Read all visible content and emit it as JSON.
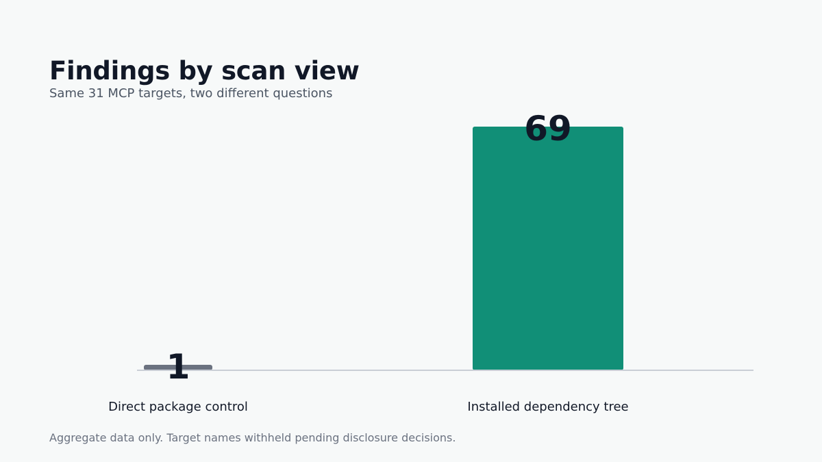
{
  "title": "Findings by scan view",
  "subtitle": "Same 31 MCP targets, two different questions",
  "footnote": "Aggregate data only. Target names withheld pending disclosure decisions.",
  "chart_data": {
    "type": "bar",
    "title": "Findings by scan view",
    "subtitle": "Same 31 MCP targets, two different questions",
    "categories": [
      "Direct package control",
      "Installed dependency tree"
    ],
    "values": [
      1,
      69
    ],
    "data_labels": [
      "1",
      "69"
    ],
    "colors": [
      "#6b7280",
      "#118f77"
    ],
    "xlabel": "",
    "ylabel": "",
    "ylim": [
      0,
      69
    ],
    "grid": false,
    "legend": "none"
  },
  "colors": {
    "background": "#f7f9f9",
    "title": "#111827",
    "axis": "#c9ced6"
  }
}
